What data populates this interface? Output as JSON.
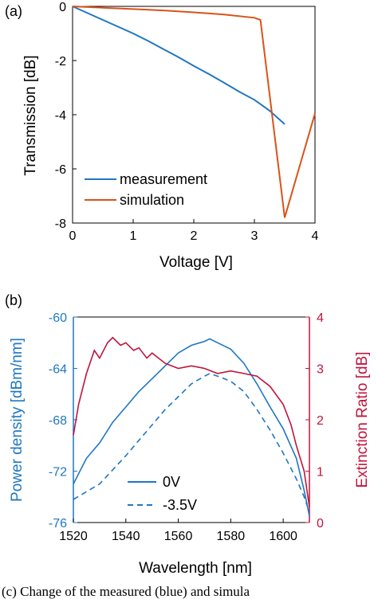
{
  "caption": "(c) Change of the measured (blue) and simula",
  "chart_data": [
    {
      "panel_label": "(a)",
      "type": "line",
      "xlabel": "Voltage [V]",
      "ylabel": "Transmission [dB]",
      "xlim": [
        0,
        4
      ],
      "ylim": [
        -8,
        0
      ],
      "xticks": [
        "0",
        "1",
        "2",
        "3",
        "4"
      ],
      "yticks": [
        "0",
        "-2",
        "-4",
        "-6",
        "-8"
      ],
      "legend_position": "bottom-left",
      "series": [
        {
          "name": "measurement",
          "color": "#1f77c4",
          "x": [
            0,
            0.25,
            0.5,
            0.75,
            1.0,
            1.25,
            1.5,
            1.75,
            2.0,
            2.25,
            2.5,
            2.75,
            3.0,
            3.25,
            3.5
          ],
          "y": [
            0,
            -0.25,
            -0.5,
            -0.75,
            -1.0,
            -1.28,
            -1.58,
            -1.88,
            -2.2,
            -2.5,
            -2.82,
            -3.15,
            -3.45,
            -3.85,
            -4.35
          ]
        },
        {
          "name": "simulation",
          "color": "#d95319",
          "x": [
            0,
            0.5,
            1.0,
            1.5,
            2.0,
            2.5,
            3.0,
            3.1,
            3.5,
            4.0
          ],
          "y": [
            0,
            -0.05,
            -0.1,
            -0.15,
            -0.22,
            -0.3,
            -0.42,
            -0.5,
            -7.8,
            -3.95
          ]
        }
      ]
    },
    {
      "panel_label": "(b)",
      "type": "line",
      "xlabel": "Wavelength [nm]",
      "ylabel_left": "Power density [dBm/nm]",
      "ylabel_right": "Extinction Ratio [dB]",
      "xlim": [
        1520,
        1610
      ],
      "ylim_left": [
        -76,
        -60
      ],
      "ylim_right": [
        0,
        4
      ],
      "xticks": [
        "1520",
        "1540",
        "1560",
        "1580",
        "1600"
      ],
      "yticks_left": [
        "-60",
        "-64",
        "-68",
        "-72",
        "-76"
      ],
      "yticks_right": [
        "4",
        "3",
        "2",
        "1",
        "0"
      ],
      "left_axis_color": "#1f77c4",
      "right_axis_color": "#c0143c",
      "legend_position": "bottom-center",
      "series": [
        {
          "name": "0V",
          "axis": "left",
          "style": "solid",
          "color": "#1f77c4",
          "x": [
            1520,
            1525,
            1530,
            1535,
            1540,
            1545,
            1550,
            1555,
            1560,
            1565,
            1570,
            1572,
            1575,
            1580,
            1585,
            1590,
            1595,
            1600,
            1605,
            1608,
            1610
          ],
          "y": [
            -73.0,
            -71.0,
            -69.8,
            -68.2,
            -67.0,
            -65.8,
            -64.8,
            -63.8,
            -62.8,
            -62.2,
            -61.9,
            -61.7,
            -62.0,
            -62.5,
            -63.6,
            -65.2,
            -67.0,
            -68.7,
            -71.0,
            -73.5,
            -75.5
          ]
        },
        {
          "name": "-3.5V",
          "axis": "left",
          "style": "dashed",
          "color": "#1f77c4",
          "x": [
            1520,
            1525,
            1530,
            1535,
            1540,
            1545,
            1550,
            1555,
            1560,
            1565,
            1570,
            1572,
            1575,
            1580,
            1585,
            1590,
            1595,
            1600,
            1605,
            1608,
            1610
          ],
          "y": [
            -74.2,
            -73.6,
            -73.0,
            -71.9,
            -70.8,
            -69.6,
            -68.4,
            -67.2,
            -66.2,
            -65.2,
            -64.6,
            -64.4,
            -64.6,
            -65.0,
            -65.8,
            -67.2,
            -68.8,
            -70.6,
            -72.6,
            -74.0,
            -75.2
          ]
        },
        {
          "name": "",
          "axis": "right",
          "style": "solid",
          "color": "#c0143c",
          "x": [
            1520,
            1522,
            1525,
            1528,
            1530,
            1533,
            1535,
            1538,
            1540,
            1543,
            1545,
            1548,
            1550,
            1555,
            1560,
            1565,
            1570,
            1575,
            1580,
            1585,
            1590,
            1595,
            1600,
            1603,
            1605,
            1608,
            1610
          ],
          "y": [
            1.7,
            2.3,
            2.9,
            3.35,
            3.2,
            3.5,
            3.6,
            3.45,
            3.5,
            3.35,
            3.4,
            3.2,
            3.3,
            3.1,
            3.0,
            3.05,
            3.0,
            2.9,
            2.95,
            2.9,
            2.85,
            2.65,
            2.3,
            1.9,
            1.5,
            1.0,
            0.3
          ]
        }
      ]
    }
  ]
}
